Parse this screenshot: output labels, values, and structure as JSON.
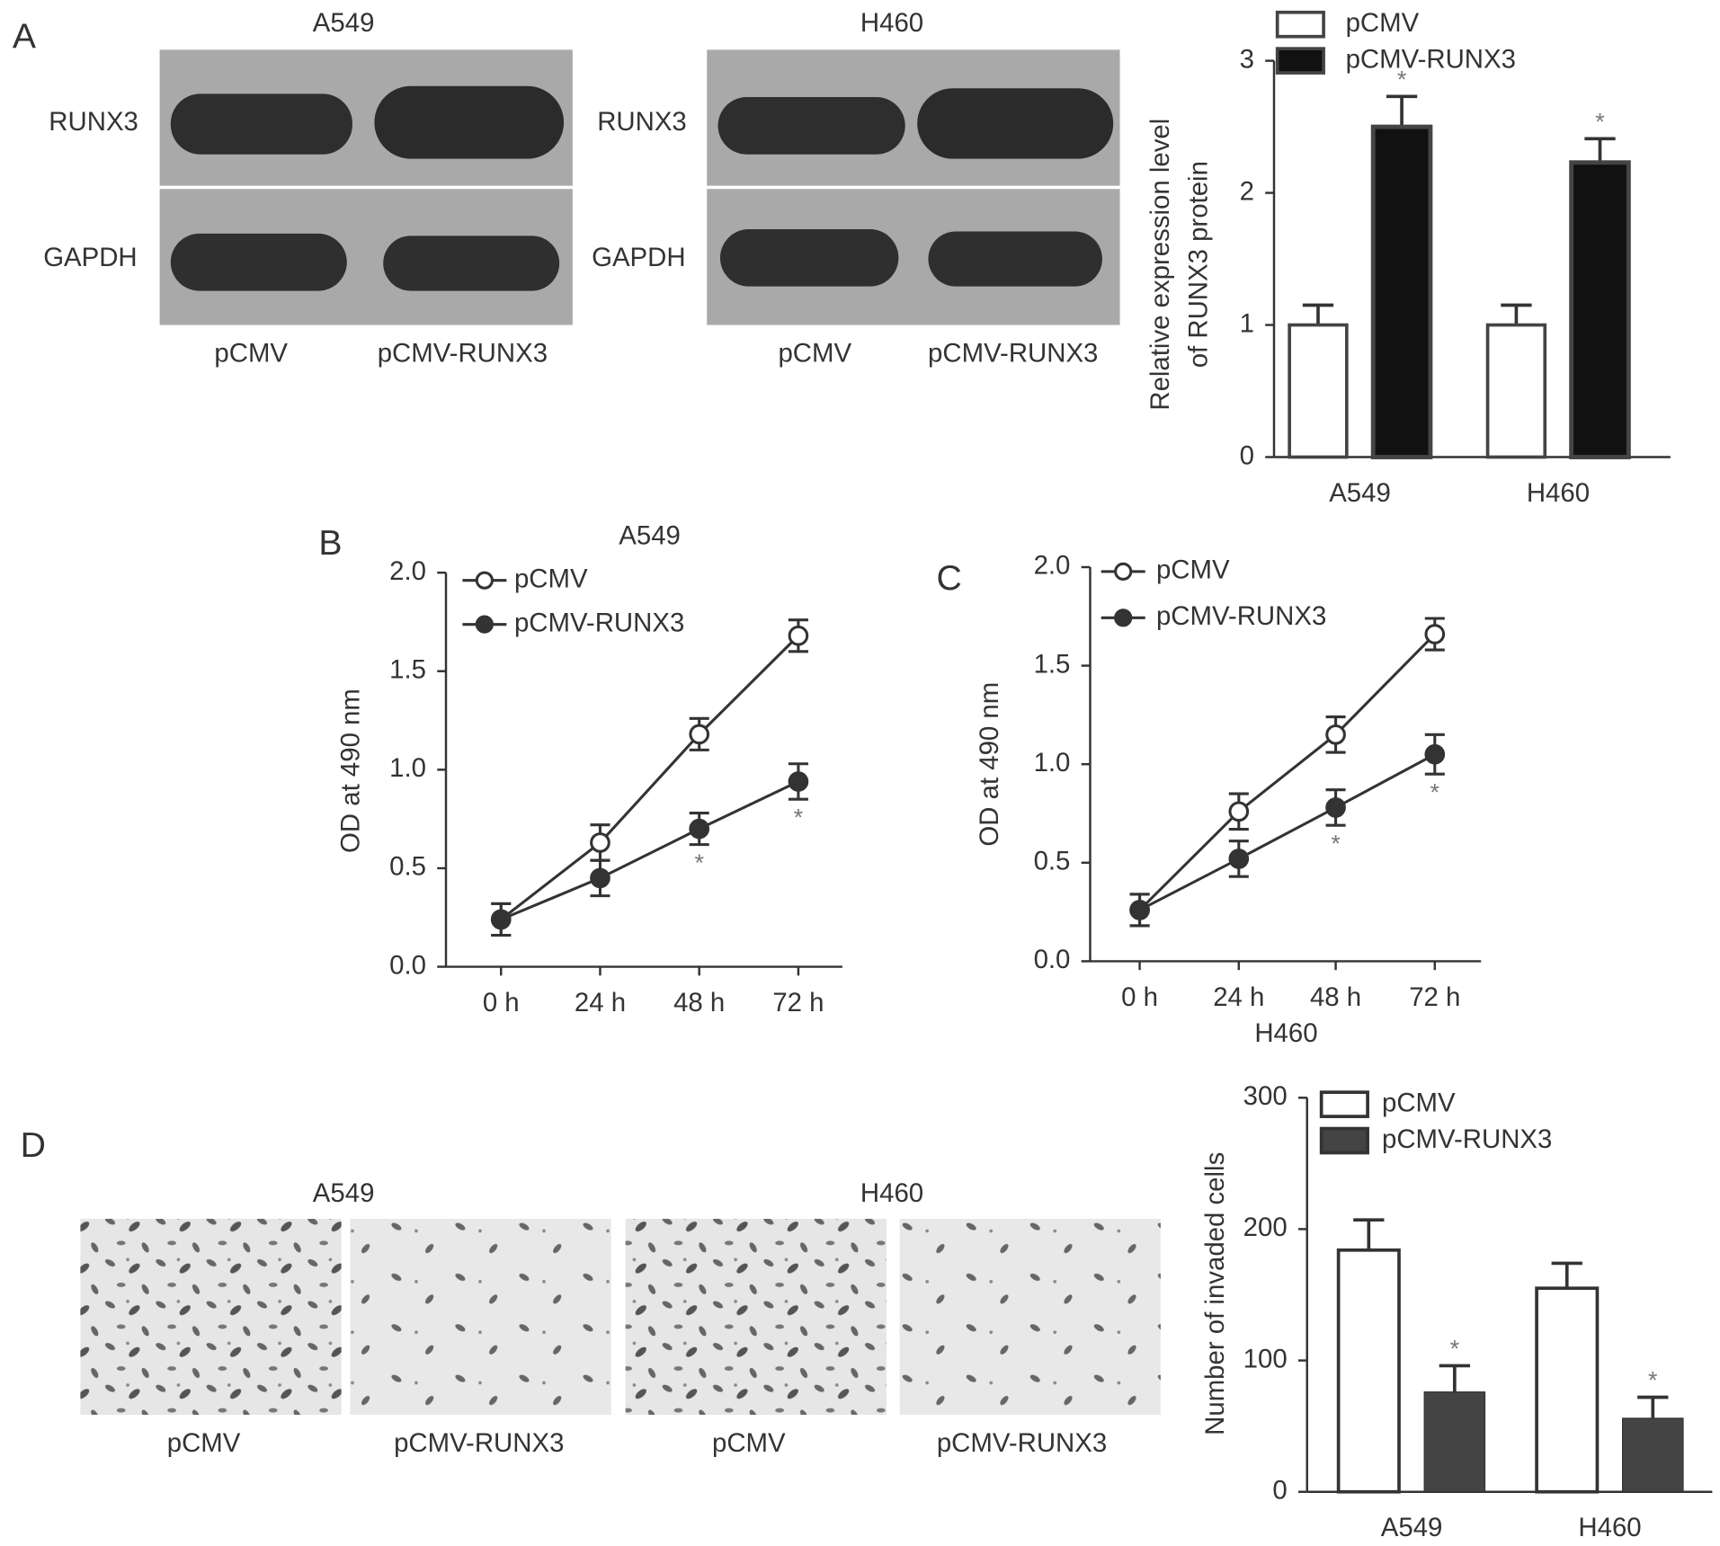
{
  "panel_labels": [
    "A",
    "B",
    "C",
    "D"
  ],
  "western_blots": [
    {
      "title": "A549",
      "rows": [
        "RUNX3",
        "GAPDH"
      ],
      "lanes": [
        "pCMV",
        "pCMV-RUNX3"
      ]
    },
    {
      "title": "H460",
      "rows": [
        "RUNX3",
        "GAPDH"
      ],
      "lanes": [
        "pCMV",
        "pCMV-RUNX3"
      ]
    }
  ],
  "invasion_images": [
    {
      "title": "A549",
      "lanes": [
        "pCMV",
        "pCMV-RUNX3"
      ]
    },
    {
      "title": "H460",
      "lanes": [
        "pCMV",
        "pCMV-RUNX3"
      ]
    }
  ],
  "chart_data": [
    {
      "type": "bar",
      "ylabel": [
        "Relative expression level",
        "of RUNX3 protein"
      ],
      "categories": [
        "A549",
        "H460"
      ],
      "series": [
        {
          "name": "pCMV",
          "color": "#ffffff",
          "values": [
            1,
            1
          ],
          "errors": [
            0.15,
            0.15
          ]
        },
        {
          "name": "pCMV-RUNX3",
          "color": "#111111",
          "values": [
            2.5,
            2.23
          ],
          "errors": [
            0.23,
            0.18
          ],
          "markers": [
            "*",
            "*"
          ]
        }
      ],
      "ylim": [
        0,
        3
      ],
      "yticks": [
        0,
        1,
        2,
        3
      ],
      "legend": "top-left"
    },
    {
      "type": "line",
      "title": "A549",
      "ylabel": [
        "OD at 490 nm"
      ],
      "categories": [
        "0 h",
        "24 h",
        "48 h",
        "72 h"
      ],
      "series": [
        {
          "name": "pCMV",
          "color": "#333333",
          "marker": "open",
          "values": [
            0.24,
            0.63,
            1.18,
            1.68
          ],
          "errors": [
            0.08,
            0.09,
            0.08,
            0.08
          ]
        },
        {
          "name": "pCMV-RUNX3",
          "color": "#333333",
          "marker": "filled",
          "values": [
            0.24,
            0.45,
            0.7,
            0.94
          ],
          "errors": [
            0.08,
            0.09,
            0.08,
            0.09
          ],
          "markers": [
            null,
            null,
            "*",
            "*"
          ]
        }
      ],
      "ylim": [
        0,
        2
      ],
      "yticks": [
        {
          "value": 0,
          "label": "0.0"
        },
        {
          "value": 0.5,
          "label": "0.5"
        },
        {
          "value": 1,
          "label": "1.0"
        },
        {
          "value": 1.5,
          "label": "1.5"
        },
        {
          "value": 2,
          "label": "2.0"
        }
      ],
      "legend": "top-left"
    },
    {
      "type": "line",
      "title": "H460",
      "ylabel": [
        "OD at 490 nm"
      ],
      "categories": [
        "0 h",
        "24 h",
        "48 h",
        "72 h"
      ],
      "series": [
        {
          "name": "pCMV",
          "color": "#333333",
          "marker": "open",
          "values": [
            0.26,
            0.76,
            1.15,
            1.66
          ],
          "errors": [
            0.08,
            0.09,
            0.09,
            0.08
          ]
        },
        {
          "name": "pCMV-RUNX3",
          "color": "#333333",
          "marker": "filled",
          "values": [
            0.26,
            0.52,
            0.78,
            1.05
          ],
          "errors": [
            0.08,
            0.09,
            0.09,
            0.1
          ],
          "markers": [
            null,
            null,
            "*",
            "*"
          ]
        }
      ],
      "ylim": [
        0,
        2
      ],
      "yticks": [
        {
          "value": 0,
          "label": "0.0"
        },
        {
          "value": 0.5,
          "label": "0.5"
        },
        {
          "value": 1,
          "label": "1.0"
        },
        {
          "value": 1.5,
          "label": "1.5"
        },
        {
          "value": 2,
          "label": "2.0"
        }
      ],
      "legend": "top-left"
    },
    {
      "type": "bar",
      "ylabel": [
        "Number of invaded cells"
      ],
      "categories": [
        "A549",
        "H460"
      ],
      "series": [
        {
          "name": "pCMV",
          "color": "#ffffff",
          "values": [
            184,
            155
          ],
          "errors": [
            23,
            19
          ]
        },
        {
          "name": "pCMV-RUNX3",
          "color": "#444444",
          "values": [
            76,
            56
          ],
          "errors": [
            20,
            16
          ],
          "markers": [
            "*",
            "*"
          ]
        }
      ],
      "ylim": [
        0,
        300
      ],
      "yticks": [
        0,
        100,
        200,
        300
      ],
      "legend": "top-left"
    }
  ]
}
